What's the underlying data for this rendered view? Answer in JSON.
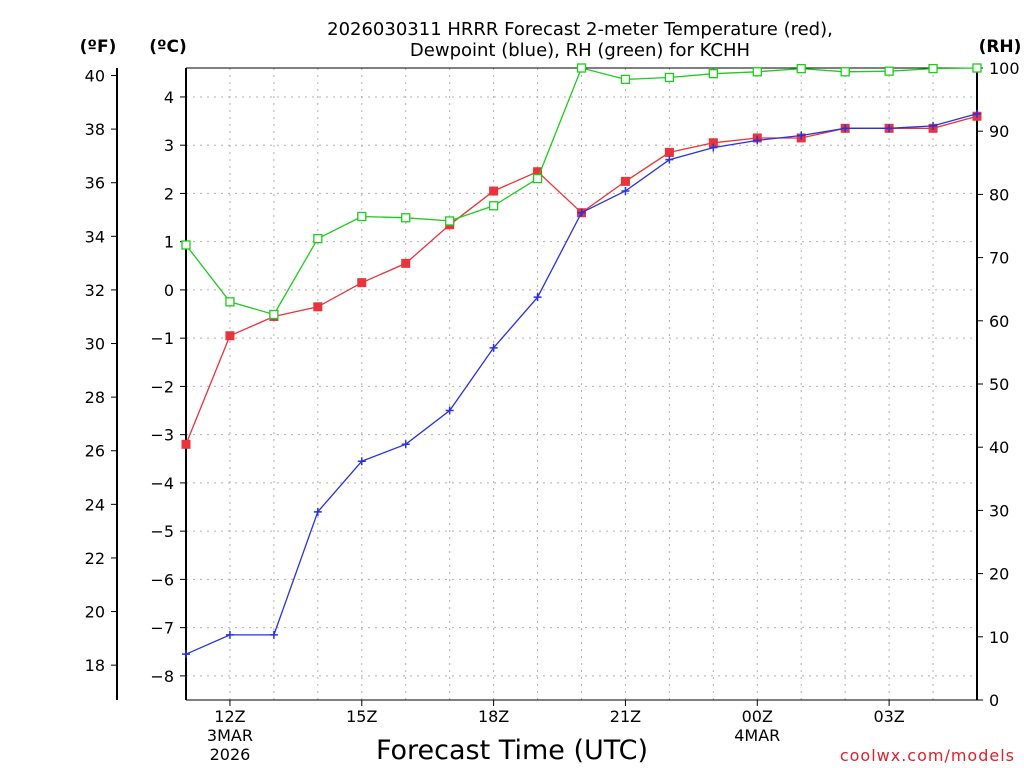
{
  "chart_data": {
    "type": "line",
    "title": [
      "2026030311 HRRR Forecast 2-meter Temperature (red),",
      "Dewpoint (blue), RH (green) for KCHH"
    ],
    "xlabel": "Forecast Time (UTC)",
    "credit": "coolwx.com/models",
    "units": {
      "fahrenheit": "(ºF)",
      "celsius": "(ºC)",
      "rh": "(RH)"
    },
    "x_range_hours": [
      11,
      29
    ],
    "x_ticks": [
      {
        "hour": 12,
        "lines": [
          "12Z",
          "3MAR",
          "2026"
        ]
      },
      {
        "hour": 15,
        "lines": [
          "15Z"
        ]
      },
      {
        "hour": 18,
        "lines": [
          "18Z"
        ]
      },
      {
        "hour": 21,
        "lines": [
          "21Z"
        ]
      },
      {
        "hour": 24,
        "lines": [
          "00Z",
          "4MAR"
        ]
      },
      {
        "hour": 27,
        "lines": [
          "03Z"
        ]
      }
    ],
    "left_celsius_axis": {
      "min": -8.5,
      "max": 4.6,
      "ticks": [
        -8,
        -7,
        -6,
        -5,
        -4,
        -3,
        -2,
        -1,
        0,
        1,
        2,
        3,
        4
      ]
    },
    "left_fahrenheit_axis": {
      "ticks": [
        18,
        20,
        22,
        24,
        26,
        28,
        30,
        32,
        34,
        36,
        38,
        40
      ]
    },
    "right_rh_axis": {
      "min": 0,
      "max": 100,
      "ticks": [
        0,
        10,
        20,
        30,
        40,
        50,
        60,
        70,
        80,
        90,
        100
      ]
    },
    "x_hours": [
      11,
      12,
      13,
      14,
      15,
      16,
      17,
      18,
      19,
      20,
      21,
      22,
      23,
      24,
      25,
      26,
      27,
      28,
      29
    ],
    "series": [
      {
        "name": "Temperature",
        "axis": "celsius",
        "color": "#e8343a",
        "marker": "filled-square",
        "values": [
          -3.2,
          -0.95,
          -0.55,
          -0.35,
          0.15,
          0.55,
          1.35,
          2.05,
          2.45,
          1.6,
          2.25,
          2.85,
          3.05,
          3.15,
          3.15,
          3.35,
          3.35,
          3.35,
          3.6
        ]
      },
      {
        "name": "Dewpoint",
        "axis": "celsius",
        "color": "#2832e0",
        "marker": "plus",
        "values": [
          -7.55,
          -7.15,
          -7.15,
          -4.6,
          -3.55,
          -3.2,
          -2.5,
          -1.2,
          -0.15,
          1.6,
          2.05,
          2.7,
          2.95,
          3.1,
          3.2,
          3.35,
          3.35,
          3.4,
          3.65
        ]
      },
      {
        "name": "RH",
        "axis": "rh",
        "color": "#1ecb1e",
        "marker": "open-square",
        "values": [
          72,
          63,
          61,
          73,
          76.5,
          76.3,
          75.8,
          78.2,
          82.5,
          100,
          98.2,
          98.5,
          99.1,
          99.4,
          99.9,
          99.4,
          99.5,
          99.9,
          100
        ]
      }
    ]
  }
}
